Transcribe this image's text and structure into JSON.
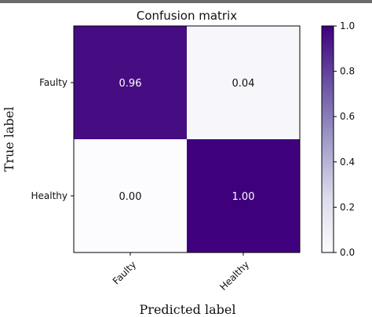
{
  "chart_data": {
    "type": "heatmap",
    "title": "Confusion matrix",
    "xlabel": "Predicted label",
    "ylabel": "True label",
    "x_categories": [
      "Faulty",
      "Healthy"
    ],
    "y_categories": [
      "Faulty",
      "Healthy"
    ],
    "values": [
      [
        0.96,
        0.04
      ],
      [
        0.0,
        1.0
      ]
    ],
    "cell_labels": [
      [
        "0.96",
        "0.04"
      ],
      [
        "0.00",
        "1.00"
      ]
    ],
    "colorbar": {
      "range": [
        0.0,
        1.0
      ],
      "ticks": [
        "0.0",
        "0.2",
        "0.4",
        "0.6",
        "0.8",
        "1.0"
      ],
      "colormap": "Purples"
    }
  }
}
